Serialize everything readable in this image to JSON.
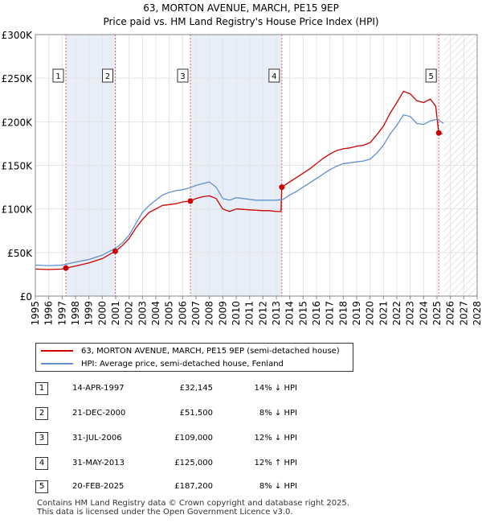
{
  "title": "63, MORTON AVENUE, MARCH, PE15 9EP",
  "subtitle": "Price paid vs. HM Land Registry's House Price Index (HPI)",
  "colors": {
    "price_line": "#cc0000",
    "hpi_line": "#6090cc",
    "shade": "#e8eef8",
    "marker_line": "#dd6666",
    "marker_dot": "#cc0000"
  },
  "chart_data": {
    "type": "line",
    "xlim": [
      1995,
      2028
    ],
    "ylim": [
      0,
      300000
    ],
    "x_ticks": [
      1995,
      1996,
      1997,
      1998,
      1999,
      2000,
      2001,
      2002,
      2003,
      2004,
      2005,
      2006,
      2007,
      2008,
      2009,
      2010,
      2011,
      2012,
      2013,
      2014,
      2015,
      2016,
      2017,
      2018,
      2019,
      2020,
      2021,
      2022,
      2023,
      2024,
      2025,
      2026,
      2027,
      2028
    ],
    "y_ticks": [
      {
        "value": 0,
        "label": "£0"
      },
      {
        "value": 50000,
        "label": "£50K"
      },
      {
        "value": 100000,
        "label": "£100K"
      },
      {
        "value": 150000,
        "label": "£150K"
      },
      {
        "value": 200000,
        "label": "£200K"
      },
      {
        "value": 250000,
        "label": "£250K"
      },
      {
        "value": 300000,
        "label": "£300K"
      }
    ],
    "shaded_periods": [
      [
        1997.28,
        2000.97
      ],
      [
        2006.58,
        2013.41
      ]
    ],
    "future_hatch_start": 2025.5,
    "series": [
      {
        "name": "63, MORTON AVENUE, MARCH, PE15 9EP (semi-detached house)",
        "color": "#cc0000",
        "points": [
          [
            1995.0,
            31000
          ],
          [
            1996.0,
            30500
          ],
          [
            1997.0,
            31000
          ],
          [
            1997.28,
            32145
          ],
          [
            1998.0,
            34500
          ],
          [
            1999.0,
            38000
          ],
          [
            2000.0,
            43000
          ],
          [
            2000.97,
            51500
          ],
          [
            2001.5,
            58000
          ],
          [
            2002.0,
            66000
          ],
          [
            2002.5,
            78000
          ],
          [
            2003.0,
            88000
          ],
          [
            2003.5,
            96000
          ],
          [
            2004.0,
            100000
          ],
          [
            2004.5,
            104000
          ],
          [
            2005.0,
            105000
          ],
          [
            2005.5,
            106000
          ],
          [
            2006.0,
            108000
          ],
          [
            2006.58,
            109000
          ],
          [
            2007.0,
            112000
          ],
          [
            2007.5,
            114000
          ],
          [
            2008.0,
            115000
          ],
          [
            2008.5,
            112000
          ],
          [
            2009.0,
            100000
          ],
          [
            2009.5,
            97000
          ],
          [
            2010.0,
            100000
          ],
          [
            2010.5,
            99500
          ],
          [
            2011.0,
            99000
          ],
          [
            2011.5,
            98500
          ],
          [
            2012.0,
            98000
          ],
          [
            2012.5,
            98000
          ],
          [
            2013.0,
            97000
          ],
          [
            2013.35,
            97000
          ],
          [
            2013.41,
            125000
          ],
          [
            2014.0,
            131000
          ],
          [
            2014.5,
            136000
          ],
          [
            2015.0,
            141000
          ],
          [
            2015.5,
            146000
          ],
          [
            2016.0,
            152000
          ],
          [
            2016.5,
            158000
          ],
          [
            2017.0,
            163000
          ],
          [
            2017.5,
            167000
          ],
          [
            2018.0,
            169000
          ],
          [
            2018.5,
            170000
          ],
          [
            2019.0,
            172000
          ],
          [
            2019.5,
            173000
          ],
          [
            2020.0,
            176000
          ],
          [
            2020.5,
            185000
          ],
          [
            2021.0,
            195000
          ],
          [
            2021.5,
            210000
          ],
          [
            2022.0,
            222000
          ],
          [
            2022.5,
            235000
          ],
          [
            2023.0,
            232000
          ],
          [
            2023.5,
            224000
          ],
          [
            2024.0,
            222000
          ],
          [
            2024.5,
            226000
          ],
          [
            2024.9,
            218000
          ],
          [
            2025.13,
            187200
          ],
          [
            2025.4,
            186000
          ]
        ]
      },
      {
        "name": "HPI: Average price, semi-detached house, Fenland",
        "color": "#6090cc",
        "points": [
          [
            1995.0,
            35500
          ],
          [
            1996.0,
            35000
          ],
          [
            1997.0,
            35500
          ],
          [
            1998.0,
            39000
          ],
          [
            1999.0,
            42000
          ],
          [
            2000.0,
            47000
          ],
          [
            2001.0,
            55000
          ],
          [
            2001.5,
            61000
          ],
          [
            2002.0,
            70000
          ],
          [
            2002.5,
            83000
          ],
          [
            2003.0,
            96000
          ],
          [
            2003.5,
            104000
          ],
          [
            2004.0,
            110000
          ],
          [
            2004.5,
            116000
          ],
          [
            2005.0,
            119000
          ],
          [
            2005.5,
            121000
          ],
          [
            2006.0,
            122000
          ],
          [
            2006.5,
            124000
          ],
          [
            2007.0,
            127000
          ],
          [
            2007.5,
            129000
          ],
          [
            2008.0,
            131000
          ],
          [
            2008.5,
            125000
          ],
          [
            2009.0,
            112000
          ],
          [
            2009.5,
            110000
          ],
          [
            2010.0,
            113000
          ],
          [
            2010.5,
            112000
          ],
          [
            2011.0,
            111000
          ],
          [
            2011.5,
            110000
          ],
          [
            2012.0,
            110000
          ],
          [
            2012.5,
            110000
          ],
          [
            2013.0,
            110000
          ],
          [
            2013.5,
            111000
          ],
          [
            2014.0,
            116000
          ],
          [
            2014.5,
            120000
          ],
          [
            2015.0,
            125000
          ],
          [
            2015.5,
            130000
          ],
          [
            2016.0,
            135000
          ],
          [
            2016.5,
            140000
          ],
          [
            2017.0,
            145000
          ],
          [
            2017.5,
            149000
          ],
          [
            2018.0,
            152000
          ],
          [
            2018.5,
            153000
          ],
          [
            2019.0,
            154000
          ],
          [
            2019.5,
            155000
          ],
          [
            2020.0,
            157000
          ],
          [
            2020.5,
            164000
          ],
          [
            2021.0,
            173000
          ],
          [
            2021.5,
            186000
          ],
          [
            2022.0,
            196000
          ],
          [
            2022.5,
            208000
          ],
          [
            2023.0,
            206000
          ],
          [
            2023.5,
            198000
          ],
          [
            2024.0,
            197000
          ],
          [
            2024.5,
            201000
          ],
          [
            2025.0,
            203000
          ],
          [
            2025.5,
            198000
          ]
        ]
      }
    ],
    "markers": [
      {
        "label": "1",
        "x": 1997.28,
        "y": 32145
      },
      {
        "label": "2",
        "x": 2000.97,
        "y": 51500
      },
      {
        "label": "3",
        "x": 2006.58,
        "y": 109000
      },
      {
        "label": "4",
        "x": 2013.41,
        "y": 125000
      },
      {
        "label": "5",
        "x": 2025.13,
        "y": 187200
      }
    ]
  },
  "legend": [
    {
      "label": "63, MORTON AVENUE, MARCH, PE15 9EP (semi-detached house)",
      "color": "#cc0000"
    },
    {
      "label": "HPI: Average price, semi-detached house, Fenland",
      "color": "#6090cc"
    }
  ],
  "transactions": [
    {
      "num": "1",
      "date": "14-APR-1997",
      "price": "£32,145",
      "hpi": "14% ↓ HPI"
    },
    {
      "num": "2",
      "date": "21-DEC-2000",
      "price": "£51,500",
      "hpi": "8% ↓ HPI"
    },
    {
      "num": "3",
      "date": "31-JUL-2006",
      "price": "£109,000",
      "hpi": "12% ↓ HPI"
    },
    {
      "num": "4",
      "date": "31-MAY-2013",
      "price": "£125,000",
      "hpi": "12% ↑ HPI"
    },
    {
      "num": "5",
      "date": "20-FEB-2025",
      "price": "£187,200",
      "hpi": "8% ↓ HPI"
    }
  ],
  "footer": {
    "line1": "Contains HM Land Registry data © Crown copyright and database right 2025.",
    "line2": "This data is licensed under the Open Government Licence v3.0."
  }
}
